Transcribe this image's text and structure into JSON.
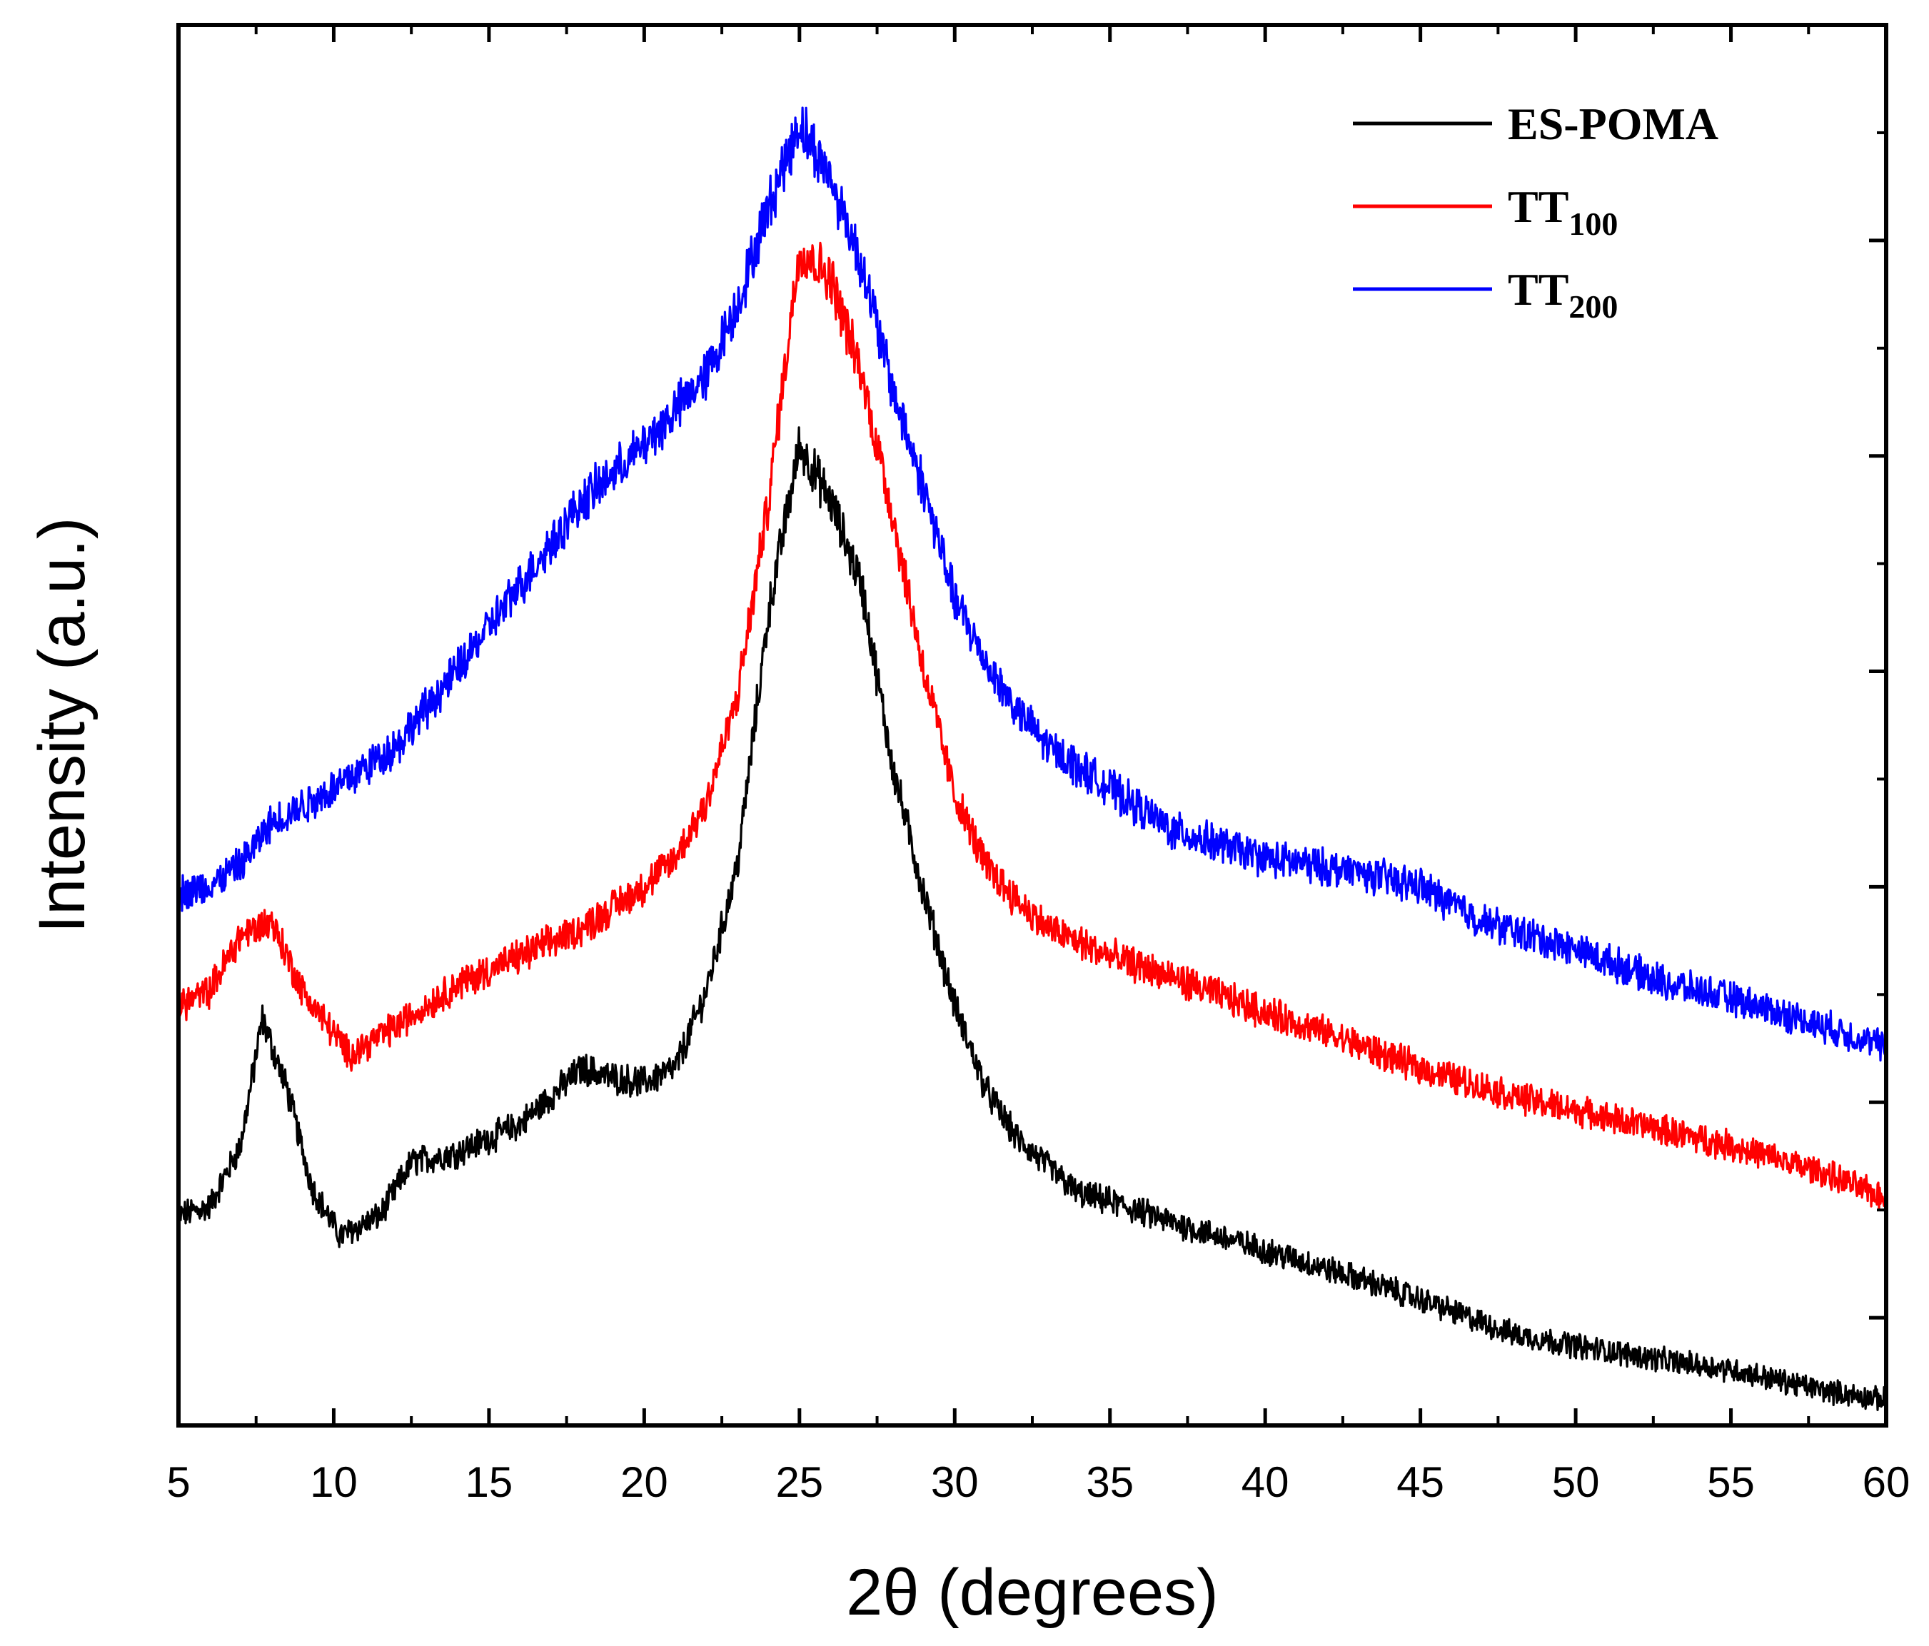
{
  "chart_data": {
    "type": "line",
    "title": "",
    "xlabel": "2θ (degrees)",
    "ylabel": "Intensity (a.u.)",
    "xlim": [
      5,
      60
    ],
    "ylim": [
      0,
      100
    ],
    "x_ticks": [
      5,
      10,
      15,
      20,
      25,
      30,
      35,
      40,
      45,
      50,
      55,
      60
    ],
    "y_tick_labels_shown": false,
    "grid": false,
    "legend_position": "top-right",
    "series": [
      {
        "name": "ES-POMA",
        "label_main": "ES-POMA",
        "label_sub": "",
        "color": "#000000",
        "noise": 1.2,
        "points": [
          [
            5,
            15.0
          ],
          [
            6,
            15.6
          ],
          [
            7,
            20.0
          ],
          [
            7.7,
            29.0
          ],
          [
            8.5,
            24.0
          ],
          [
            9.3,
            17.0
          ],
          [
            10.2,
            13.5
          ],
          [
            11.5,
            15.0
          ],
          [
            12.5,
            18.8
          ],
          [
            14,
            19.5
          ],
          [
            16,
            21.5
          ],
          [
            18,
            25.5
          ],
          [
            19,
            24.8
          ],
          [
            20,
            24.5
          ],
          [
            21,
            25.5
          ],
          [
            22,
            31.0
          ],
          [
            23,
            40.0
          ],
          [
            24,
            58.0
          ],
          [
            25,
            70.0
          ],
          [
            26,
            66.0
          ],
          [
            27,
            60.0
          ],
          [
            28,
            47.0
          ],
          [
            29,
            38.0
          ],
          [
            30,
            30.0
          ],
          [
            31,
            24.0
          ],
          [
            32,
            20.5
          ],
          [
            33,
            18.5
          ],
          [
            34,
            16.5
          ],
          [
            35,
            16.0
          ],
          [
            37,
            14.5
          ],
          [
            40,
            12.5
          ],
          [
            43,
            10.5
          ],
          [
            45,
            9.0
          ],
          [
            48,
            6.5
          ],
          [
            50,
            5.7
          ],
          [
            53,
            4.6
          ],
          [
            55,
            4.0
          ],
          [
            58,
            2.5
          ],
          [
            60,
            1.8
          ]
        ]
      },
      {
        "name": "TT100",
        "label_main": "TT",
        "label_sub": "100",
        "color": "#ff0000",
        "noise": 1.2,
        "points": [
          [
            5,
            30.0
          ],
          [
            6,
            31.0
          ],
          [
            7,
            35.0
          ],
          [
            8,
            36.0
          ],
          [
            9,
            31.0
          ],
          [
            10.5,
            26.5
          ],
          [
            12,
            28.5
          ],
          [
            14,
            31.5
          ],
          [
            16,
            33.5
          ],
          [
            18,
            35.5
          ],
          [
            20,
            38.5
          ],
          [
            21,
            40.5
          ],
          [
            22,
            44.5
          ],
          [
            23,
            52.0
          ],
          [
            24,
            66.0
          ],
          [
            25,
            84.0
          ],
          [
            26,
            82.0
          ],
          [
            27,
            75.0
          ],
          [
            28,
            65.0
          ],
          [
            29,
            54.0
          ],
          [
            30,
            45.0
          ],
          [
            31,
            40.0
          ],
          [
            32,
            37.5
          ],
          [
            33,
            35.5
          ],
          [
            35,
            33.5
          ],
          [
            37,
            32.0
          ],
          [
            40,
            29.5
          ],
          [
            42,
            28.0
          ],
          [
            45,
            25.5
          ],
          [
            48,
            23.5
          ],
          [
            50,
            22.5
          ],
          [
            52,
            21.5
          ],
          [
            55,
            20.0
          ],
          [
            58,
            18.0
          ],
          [
            60,
            16.2
          ]
        ]
      },
      {
        "name": "TT200",
        "label_main": "TT",
        "label_sub": "200",
        "color": "#0000ff",
        "noise": 1.2,
        "points": [
          [
            5,
            38.0
          ],
          [
            6,
            38.5
          ],
          [
            7,
            40.0
          ],
          [
            8,
            43.0
          ],
          [
            10,
            45.5
          ],
          [
            12,
            48.5
          ],
          [
            14,
            54.0
          ],
          [
            16,
            60.0
          ],
          [
            18,
            66.0
          ],
          [
            20,
            70.0
          ],
          [
            22,
            75.0
          ],
          [
            23,
            80.0
          ],
          [
            24,
            87.0
          ],
          [
            25,
            93.0
          ],
          [
            26,
            89.0
          ],
          [
            27,
            83.0
          ],
          [
            28,
            74.0
          ],
          [
            29,
            67.0
          ],
          [
            30,
            59.0
          ],
          [
            31,
            54.5
          ],
          [
            32,
            51.0
          ],
          [
            33,
            48.5
          ],
          [
            35,
            45.5
          ],
          [
            37,
            42.5
          ],
          [
            40,
            40.5
          ],
          [
            43,
            39.5
          ],
          [
            45,
            38.5
          ],
          [
            47,
            36.0
          ],
          [
            50,
            34.0
          ],
          [
            53,
            31.5
          ],
          [
            55,
            30.5
          ],
          [
            58,
            28.5
          ],
          [
            60,
            27.0
          ]
        ]
      }
    ]
  }
}
